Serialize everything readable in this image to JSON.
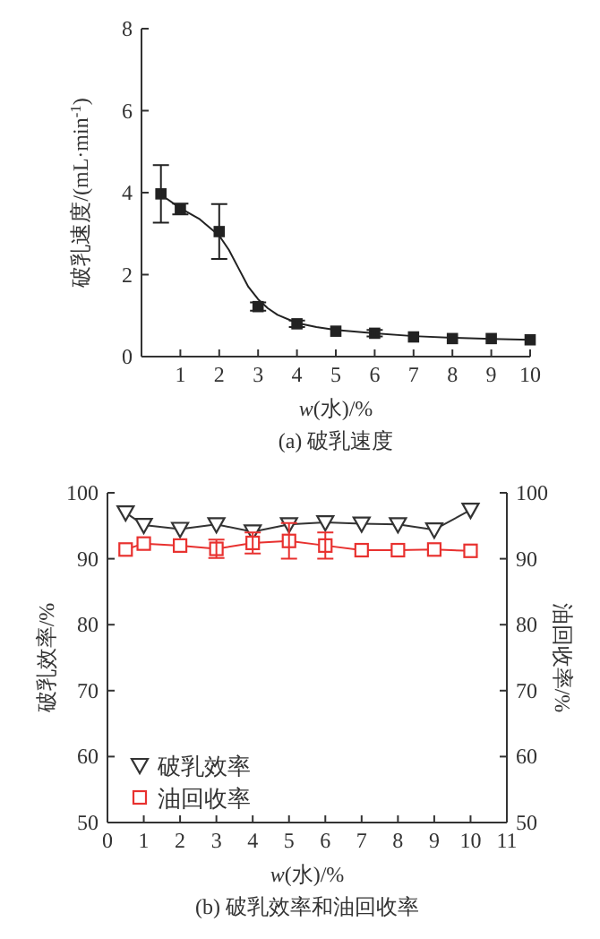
{
  "chart_data": [
    {
      "type": "scatter",
      "title": "(a) 破乳速度",
      "xlabel": "*w*(水)/%",
      "ylabel": "破乳速度/(mL·min$^{-1}$)",
      "x": [
        0.5,
        1,
        2,
        3,
        4,
        5,
        6,
        7,
        8,
        9,
        10
      ],
      "xlim": [
        0,
        10
      ],
      "xticks": [
        1,
        2,
        3,
        4,
        5,
        6,
        7,
        8,
        9,
        10
      ],
      "ylim": [
        0,
        8
      ],
      "yticks": [
        0,
        2,
        4,
        6,
        8
      ],
      "marker": "square",
      "grid": false,
      "legend": false,
      "series": [
        {
          "type": "line",
          "marker": "none",
          "color": "#222222",
          "x": [
            0.5,
            1,
            1.5,
            2,
            2.25,
            2.5,
            2.75,
            3,
            3.25,
            3.5,
            4,
            4.5,
            5,
            6,
            7,
            8,
            9,
            10
          ],
          "values": [
            3.95,
            3.62,
            3.35,
            2.95,
            2.6,
            2.15,
            1.7,
            1.4,
            1.18,
            1.02,
            0.82,
            0.72,
            0.65,
            0.57,
            0.5,
            0.46,
            0.43,
            0.41
          ]
        },
        {
          "color": "#222222",
          "values": [
            3.97,
            3.6,
            3.05,
            1.22,
            0.8,
            0.62,
            0.57,
            0.48,
            0.44,
            0.44,
            0.41
          ],
          "errors": [
            0.7,
            0.13,
            0.67,
            0.1,
            0.08,
            null,
            0.08,
            null,
            null,
            null,
            null
          ]
        }
      ]
    },
    {
      "type": "line",
      "title": "(b) 破乳效率和油回收率",
      "xlabel": "*w*(水)/%",
      "ylabel": "破乳效率/%",
      "y2label": "油回收率/%",
      "x": [
        0.5,
        1,
        2,
        3,
        4,
        5,
        6,
        7,
        8,
        9,
        10
      ],
      "xlim": [
        0,
        11
      ],
      "xticks": [
        0,
        1,
        2,
        3,
        4,
        5,
        6,
        7,
        8,
        9,
        10,
        11
      ],
      "ylim": [
        50,
        100
      ],
      "yticks": [
        50,
        60,
        70,
        80,
        90,
        100
      ],
      "y2lim": [
        50,
        100
      ],
      "y2ticks": [
        50,
        60,
        70,
        80,
        90,
        100
      ],
      "grid": false,
      "legend": "bottom left",
      "series": [
        {
          "name": "破乳效率",
          "marker": "triangle",
          "color": "#333333",
          "values": [
            97.0,
            95.1,
            94.5,
            95.2,
            94.1,
            95.2,
            95.5,
            95.3,
            95.2,
            94.4,
            97.4
          ]
        },
        {
          "name": "油回收率",
          "marker": "square",
          "axis": "y2",
          "color": "#e8312f",
          "values": [
            91.4,
            92.3,
            92.0,
            91.5,
            92.4,
            92.7,
            92.0,
            91.3,
            91.3,
            91.4,
            91.2
          ],
          "errors": [
            null,
            null,
            null,
            1.4,
            1.6,
            2.7,
            2.0,
            null,
            null,
            null,
            null
          ]
        }
      ]
    }
  ]
}
